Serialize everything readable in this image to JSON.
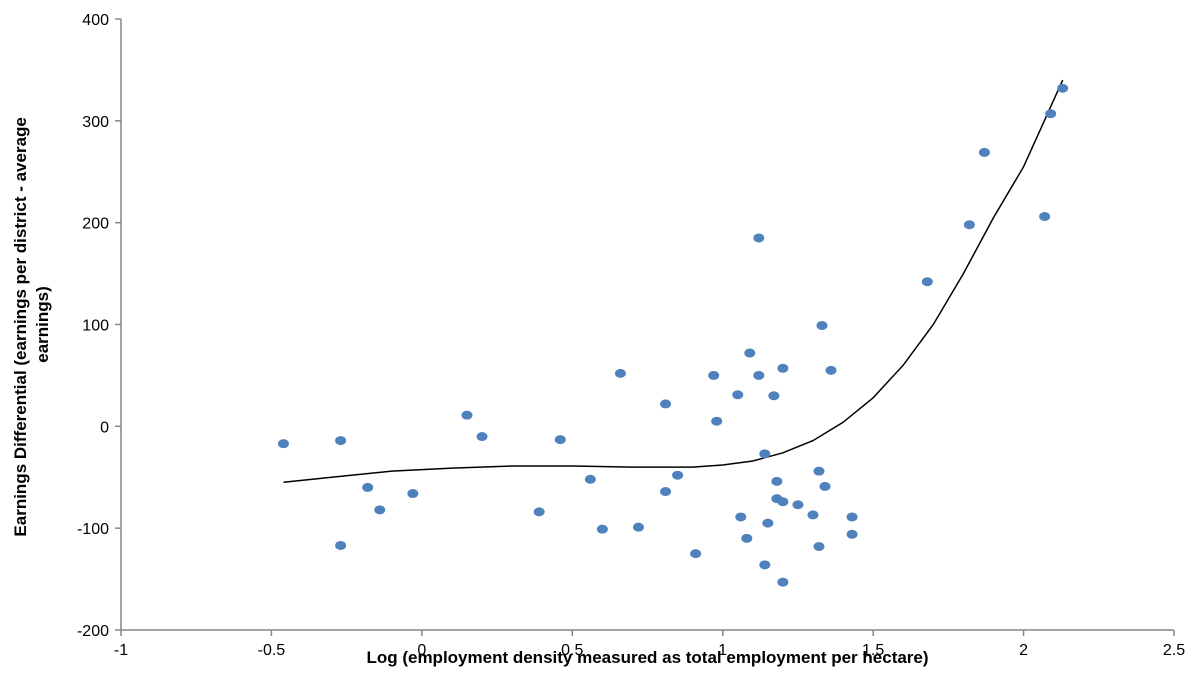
{
  "chart_data": {
    "type": "scatter",
    "xlabel": "Log (employment density measured as total employment per hectare)",
    "ylabel_line1": "Earnings Differential (earnings per district - average",
    "ylabel_line2": "earnings)",
    "xlim": [
      -1,
      2.5
    ],
    "ylim": [
      -200,
      400
    ],
    "x_ticks": [
      -1,
      -0.5,
      0,
      0.5,
      1,
      1.5,
      2,
      2.5
    ],
    "x_tick_labels": [
      "-1",
      "-0.5",
      "0",
      "0.5",
      "1",
      "1.5",
      "2",
      "2.5"
    ],
    "y_ticks": [
      -200,
      -100,
      0,
      100,
      200,
      300,
      400
    ],
    "y_tick_labels": [
      "-200",
      "-100",
      "0",
      "100",
      "200",
      "300",
      "400"
    ],
    "grid": false,
    "legend": "none",
    "marker_color": "#4F81BD",
    "trend_color": "#000000",
    "points": [
      {
        "x": -0.46,
        "y": -17
      },
      {
        "x": -0.27,
        "y": -14
      },
      {
        "x": -0.27,
        "y": -117
      },
      {
        "x": -0.18,
        "y": -60
      },
      {
        "x": -0.14,
        "y": -82
      },
      {
        "x": -0.03,
        "y": -66
      },
      {
        "x": 0.15,
        "y": 11
      },
      {
        "x": 0.2,
        "y": -10
      },
      {
        "x": 0.39,
        "y": -84
      },
      {
        "x": 0.46,
        "y": -13
      },
      {
        "x": 0.56,
        "y": -52
      },
      {
        "x": 0.6,
        "y": -101
      },
      {
        "x": 0.66,
        "y": 52
      },
      {
        "x": 0.72,
        "y": -99
      },
      {
        "x": 0.81,
        "y": 22
      },
      {
        "x": 0.81,
        "y": -64
      },
      {
        "x": 0.85,
        "y": -48
      },
      {
        "x": 0.91,
        "y": -125
      },
      {
        "x": 0.97,
        "y": 50
      },
      {
        "x": 0.98,
        "y": 5
      },
      {
        "x": 1.06,
        "y": -89
      },
      {
        "x": 1.08,
        "y": -110
      },
      {
        "x": 1.09,
        "y": 72
      },
      {
        "x": 1.12,
        "y": 185
      },
      {
        "x": 1.12,
        "y": 50
      },
      {
        "x": 1.05,
        "y": 31
      },
      {
        "x": 1.14,
        "y": -27
      },
      {
        "x": 1.15,
        "y": -95
      },
      {
        "x": 1.14,
        "y": -136
      },
      {
        "x": 1.17,
        "y": 30
      },
      {
        "x": 1.18,
        "y": -54
      },
      {
        "x": 1.18,
        "y": -71
      },
      {
        "x": 1.2,
        "y": -74
      },
      {
        "x": 1.2,
        "y": -153
      },
      {
        "x": 1.2,
        "y": 57
      },
      {
        "x": 1.25,
        "y": -77
      },
      {
        "x": 1.3,
        "y": -87
      },
      {
        "x": 1.32,
        "y": -44
      },
      {
        "x": 1.33,
        "y": 99
      },
      {
        "x": 1.34,
        "y": -59
      },
      {
        "x": 1.36,
        "y": 55
      },
      {
        "x": 1.32,
        "y": -118
      },
      {
        "x": 1.43,
        "y": -89
      },
      {
        "x": 1.43,
        "y": -106
      },
      {
        "x": 1.68,
        "y": 142
      },
      {
        "x": 1.82,
        "y": 198
      },
      {
        "x": 1.87,
        "y": 269
      },
      {
        "x": 2.07,
        "y": 206
      },
      {
        "x": 2.09,
        "y": 307
      },
      {
        "x": 2.13,
        "y": 332
      }
    ],
    "trendline": [
      {
        "x": -0.46,
        "y": -55
      },
      {
        "x": -0.3,
        "y": -50
      },
      {
        "x": -0.1,
        "y": -44
      },
      {
        "x": 0.1,
        "y": -41
      },
      {
        "x": 0.3,
        "y": -39
      },
      {
        "x": 0.5,
        "y": -39
      },
      {
        "x": 0.7,
        "y": -40
      },
      {
        "x": 0.9,
        "y": -40
      },
      {
        "x": 1.0,
        "y": -38
      },
      {
        "x": 1.1,
        "y": -34
      },
      {
        "x": 1.2,
        "y": -26
      },
      {
        "x": 1.3,
        "y": -14
      },
      {
        "x": 1.4,
        "y": 4
      },
      {
        "x": 1.5,
        "y": 28
      },
      {
        "x": 1.6,
        "y": 60
      },
      {
        "x": 1.7,
        "y": 100
      },
      {
        "x": 1.8,
        "y": 150
      },
      {
        "x": 1.9,
        "y": 205
      },
      {
        "x": 2.0,
        "y": 255
      },
      {
        "x": 2.13,
        "y": 340
      }
    ]
  }
}
